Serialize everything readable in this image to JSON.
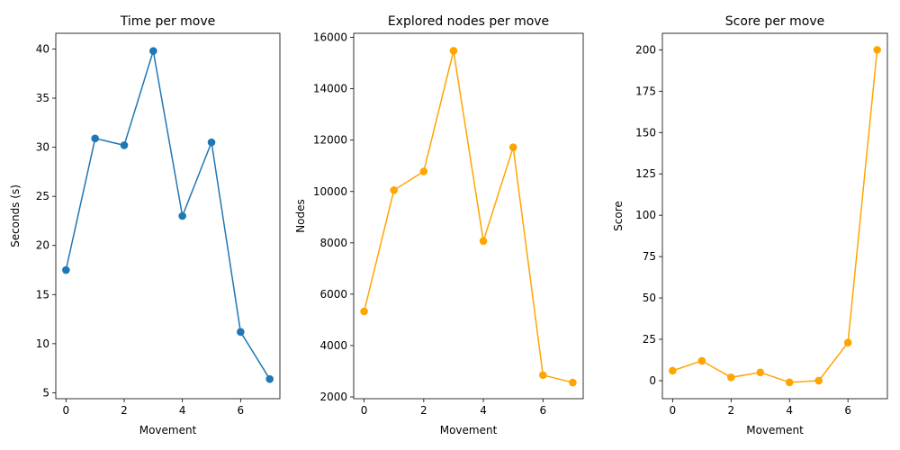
{
  "chart_data": [
    {
      "type": "line",
      "title": "Time per move",
      "xlabel": "Movement",
      "ylabel": "Seconds (s)",
      "x": [
        0,
        1,
        2,
        3,
        4,
        5,
        6,
        7
      ],
      "values": [
        17.5,
        30.9,
        30.2,
        39.8,
        23.0,
        30.5,
        11.2,
        6.4
      ],
      "xlim": [
        -0.35,
        7.35
      ],
      "ylim": [
        4.4,
        41.6
      ],
      "xticks": [
        0,
        2,
        4,
        6
      ],
      "xtick_labels": [
        "0",
        "2",
        "4",
        "6"
      ],
      "yticks": [
        5,
        10,
        15,
        20,
        25,
        30,
        35,
        40
      ],
      "ytick_labels": [
        "5",
        "10",
        "15",
        "20",
        "25",
        "30",
        "35",
        "40"
      ],
      "color": "#1f77b4",
      "marker": "circle",
      "grid": false
    },
    {
      "type": "line",
      "title": "Explored nodes per move",
      "xlabel": "Movement",
      "ylabel": "Nodes",
      "x": [
        0,
        1,
        2,
        3,
        4,
        5,
        6,
        7
      ],
      "values": [
        5330,
        10050,
        10780,
        15480,
        8070,
        11720,
        2850,
        2560
      ],
      "xlim": [
        -0.35,
        7.35
      ],
      "ylim": [
        1930,
        16160
      ],
      "xticks": [
        0,
        2,
        4,
        6
      ],
      "xtick_labels": [
        "0",
        "2",
        "4",
        "6"
      ],
      "yticks": [
        2000,
        4000,
        6000,
        8000,
        10000,
        12000,
        14000,
        16000
      ],
      "ytick_labels": [
        "2000",
        "4000",
        "6000",
        "8000",
        "10000",
        "12000",
        "14000",
        "16000"
      ],
      "color": "#ffa500",
      "marker": "circle",
      "grid": false
    },
    {
      "type": "line",
      "title": "Score per move",
      "xlabel": "Movement",
      "ylabel": "Score",
      "x": [
        0,
        1,
        2,
        3,
        4,
        5,
        6,
        7
      ],
      "values": [
        6,
        12,
        2,
        5,
        -1,
        0,
        23,
        200
      ],
      "xlim": [
        -0.35,
        7.35
      ],
      "ylim": [
        -10.9,
        210
      ],
      "xticks": [
        0,
        2,
        4,
        6
      ],
      "xtick_labels": [
        "0",
        "2",
        "4",
        "6"
      ],
      "yticks": [
        0,
        25,
        50,
        75,
        100,
        125,
        150,
        175,
        200
      ],
      "ytick_labels": [
        "0",
        "25",
        "50",
        "75",
        "100",
        "125",
        "150",
        "175",
        "200"
      ],
      "color": "#ffa500",
      "marker": "circle",
      "grid": false
    }
  ]
}
